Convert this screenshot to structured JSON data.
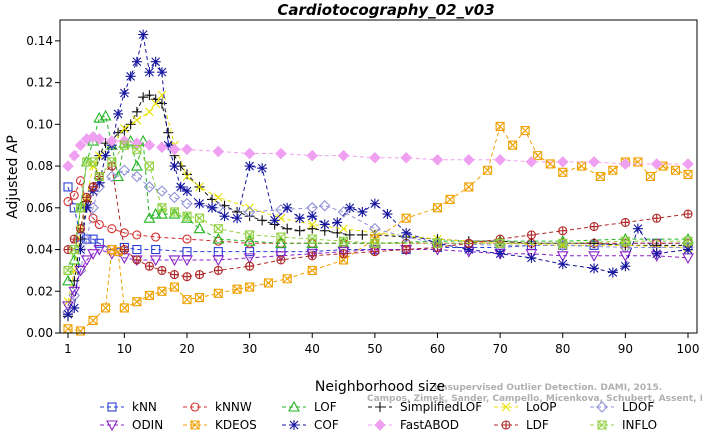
{
  "chart_data": {
    "type": "line",
    "title": "Cardiotocography_02_v03",
    "xlabel": "Neighborhood size",
    "ylabel": "Adjusted AP",
    "xlim": [
      1,
      100
    ],
    "ylim": [
      0,
      0.15
    ],
    "xticks": [
      1,
      10,
      20,
      30,
      40,
      50,
      60,
      70,
      80,
      90,
      100
    ],
    "xtick_labels": [
      "1",
      "10",
      "20",
      "30",
      "40",
      "50",
      "60",
      "70",
      "80",
      "90",
      "100"
    ],
    "yticks": [
      0,
      0.02,
      0.04,
      0.06,
      0.08,
      0.1,
      0.12,
      0.14
    ],
    "ytick_labels": [
      "0.00",
      "0.02",
      "0.04",
      "0.06",
      "0.08",
      "0.10",
      "0.12",
      "0.14"
    ],
    "grid": false,
    "legend_position": "bottom",
    "watermark": [
      "Campos, Zimek, Sander, Campello, Micenkova, Schubert, Assent, Houle",
      "Unsupervised Outlier Detection. DAMI, 2015."
    ],
    "series": [
      {
        "name": "kNN",
        "color": "#2a3fd6",
        "marker": "square",
        "x": [
          1,
          2,
          3,
          4,
          5,
          6,
          8,
          10,
          12,
          15,
          20,
          25,
          30,
          35,
          40,
          45,
          50,
          55,
          60,
          65,
          70,
          75,
          80,
          85,
          90,
          95,
          100
        ],
        "y": [
          0.07,
          0.06,
          0.046,
          0.045,
          0.045,
          0.043,
          0.04,
          0.041,
          0.04,
          0.04,
          0.039,
          0.039,
          0.039,
          0.039,
          0.039,
          0.04,
          0.04,
          0.04,
          0.041,
          0.041,
          0.041,
          0.042,
          0.042,
          0.042,
          0.043,
          0.043,
          0.043
        ]
      },
      {
        "name": "kNNW",
        "color": "#d23030",
        "marker": "circle",
        "x": [
          1,
          2,
          3,
          4,
          5,
          6,
          8,
          10,
          12,
          15,
          20,
          25,
          30,
          35,
          40,
          45,
          50,
          55,
          60,
          65,
          70,
          75,
          80,
          85,
          90,
          95,
          100
        ],
        "y": [
          0.063,
          0.066,
          0.073,
          0.062,
          0.055,
          0.052,
          0.05,
          0.048,
          0.047,
          0.046,
          0.045,
          0.044,
          0.043,
          0.043,
          0.043,
          0.043,
          0.043,
          0.043,
          0.043,
          0.043,
          0.043,
          0.043,
          0.043,
          0.043,
          0.043,
          0.043,
          0.043
        ]
      },
      {
        "name": "LOF",
        "color": "#22b522",
        "marker": "triangle-up",
        "x": [
          1,
          2,
          3,
          4,
          5,
          6,
          7,
          8,
          9,
          10,
          11,
          12,
          13,
          14,
          15,
          16,
          18,
          20,
          22,
          25,
          30,
          35,
          40,
          45,
          50,
          60,
          70,
          80,
          90,
          100
        ],
        "y": [
          0.025,
          0.035,
          0.06,
          0.082,
          0.092,
          0.103,
          0.104,
          0.09,
          0.075,
          0.091,
          0.092,
          0.08,
          0.092,
          0.055,
          0.057,
          0.057,
          0.057,
          0.055,
          0.05,
          0.045,
          0.044,
          0.043,
          0.043,
          0.043,
          0.043,
          0.044,
          0.044,
          0.044,
          0.045,
          0.045
        ]
      },
      {
        "name": "SimplifiedLOF",
        "color": "#111111",
        "marker": "plus",
        "x": [
          1,
          2,
          3,
          4,
          5,
          6,
          7,
          8,
          9,
          10,
          11,
          12,
          13,
          14,
          15,
          16,
          17,
          18,
          19,
          20,
          22,
          24,
          26,
          28,
          30,
          32,
          34,
          36,
          38,
          40,
          42,
          44,
          46,
          48,
          50,
          55,
          60,
          65,
          70,
          75,
          80,
          85,
          90,
          95,
          100
        ],
        "y": [
          0.008,
          0.025,
          0.045,
          0.063,
          0.07,
          0.085,
          0.091,
          0.092,
          0.096,
          0.097,
          0.1,
          0.106,
          0.113,
          0.114,
          0.112,
          0.11,
          0.096,
          0.085,
          0.08,
          0.076,
          0.07,
          0.064,
          0.061,
          0.058,
          0.056,
          0.054,
          0.052,
          0.05,
          0.049,
          0.05,
          0.049,
          0.048,
          0.047,
          0.047,
          0.047,
          0.046,
          0.045,
          0.044,
          0.044,
          0.043,
          0.043,
          0.043,
          0.042,
          0.042,
          0.042
        ]
      },
      {
        "name": "LoOP",
        "color": "#e8e000",
        "marker": "x",
        "x": [
          1,
          2,
          3,
          4,
          5,
          6,
          8,
          10,
          12,
          14,
          15,
          16,
          18,
          20,
          22,
          25,
          30,
          35,
          40,
          45,
          50,
          60,
          70,
          80,
          90,
          100
        ],
        "y": [
          0.015,
          0.03,
          0.05,
          0.065,
          0.08,
          0.085,
          0.09,
          0.098,
          0.102,
          0.106,
          0.11,
          0.114,
          0.09,
          0.075,
          0.07,
          0.065,
          0.06,
          0.055,
          0.052,
          0.05,
          0.048,
          0.045,
          0.043,
          0.042,
          0.042,
          0.041
        ]
      },
      {
        "name": "LDOF",
        "color": "#9090d8",
        "marker": "diamond",
        "x": [
          1,
          2,
          3,
          4,
          5,
          6,
          8,
          10,
          12,
          14,
          16,
          18,
          20,
          25,
          30,
          35,
          40,
          42,
          45,
          50,
          55,
          60,
          70,
          80,
          90,
          100
        ],
        "y": [
          0.01,
          0.018,
          0.03,
          0.045,
          0.06,
          0.07,
          0.075,
          0.078,
          0.075,
          0.07,
          0.068,
          0.065,
          0.062,
          0.06,
          0.058,
          0.059,
          0.06,
          0.061,
          0.058,
          0.05,
          0.046,
          0.043,
          0.042,
          0.042,
          0.041,
          0.041
        ]
      },
      {
        "name": "ODIN",
        "color": "#8a22c8",
        "marker": "triangle-down",
        "x": [
          1,
          2,
          3,
          4,
          5,
          6,
          8,
          10,
          12,
          15,
          18,
          20,
          25,
          30,
          35,
          40,
          45,
          50,
          55,
          60,
          65,
          70,
          75,
          80,
          85,
          90,
          95,
          100
        ],
        "y": [
          0.013,
          0.02,
          0.03,
          0.035,
          0.038,
          0.04,
          0.038,
          0.036,
          0.035,
          0.035,
          0.035,
          0.035,
          0.035,
          0.036,
          0.037,
          0.038,
          0.039,
          0.04,
          0.04,
          0.04,
          0.039,
          0.038,
          0.038,
          0.037,
          0.037,
          0.037,
          0.037,
          0.036
        ]
      },
      {
        "name": "KDEOS",
        "color": "#f0a000",
        "marker": "square-x",
        "x": [
          1,
          3,
          5,
          7,
          8,
          9,
          10,
          12,
          14,
          16,
          18,
          20,
          22,
          25,
          28,
          30,
          33,
          36,
          40,
          45,
          50,
          55,
          60,
          62,
          65,
          68,
          70,
          72,
          74,
          76,
          78,
          80,
          83,
          86,
          88,
          90,
          92,
          94,
          96,
          98,
          100
        ],
        "y": [
          0.002,
          0.001,
          0.006,
          0.012,
          0.04,
          0.039,
          0.012,
          0.015,
          0.018,
          0.02,
          0.022,
          0.016,
          0.017,
          0.019,
          0.021,
          0.022,
          0.024,
          0.026,
          0.03,
          0.035,
          0.045,
          0.055,
          0.06,
          0.064,
          0.07,
          0.078,
          0.099,
          0.09,
          0.097,
          0.085,
          0.081,
          0.077,
          0.08,
          0.075,
          0.078,
          0.082,
          0.082,
          0.075,
          0.08,
          0.078,
          0.076
        ]
      },
      {
        "name": "COF",
        "color": "#1515a0",
        "marker": "star",
        "x": [
          1,
          2,
          3,
          4,
          5,
          6,
          7,
          8,
          9,
          10,
          11,
          12,
          13,
          14,
          15,
          16,
          17,
          18,
          19,
          20,
          22,
          24,
          26,
          28,
          30,
          32,
          34,
          36,
          38,
          40,
          42,
          44,
          46,
          48,
          50,
          52,
          55,
          60,
          65,
          70,
          75,
          80,
          85,
          88,
          90,
          92,
          95,
          100
        ],
        "y": [
          0.009,
          0.012,
          0.04,
          0.06,
          0.068,
          0.072,
          0.085,
          0.09,
          0.105,
          0.115,
          0.123,
          0.13,
          0.143,
          0.125,
          0.13,
          0.125,
          0.09,
          0.08,
          0.07,
          0.068,
          0.062,
          0.06,
          0.056,
          0.055,
          0.08,
          0.079,
          0.054,
          0.06,
          0.055,
          0.056,
          0.052,
          0.053,
          0.06,
          0.058,
          0.062,
          0.057,
          0.048,
          0.043,
          0.04,
          0.038,
          0.036,
          0.033,
          0.031,
          0.029,
          0.032,
          0.05,
          0.038,
          0.04
        ]
      },
      {
        "name": "FastABOD",
        "color": "#f0a0f0",
        "marker": "diamond-filled",
        "x": [
          1,
          2,
          3,
          4,
          5,
          6,
          8,
          10,
          12,
          14,
          16,
          18,
          20,
          25,
          30,
          35,
          40,
          45,
          50,
          55,
          60,
          65,
          70,
          75,
          80,
          85,
          90,
          95,
          100
        ],
        "y": [
          0.08,
          0.085,
          0.09,
          0.093,
          0.094,
          0.093,
          0.092,
          0.092,
          0.091,
          0.09,
          0.089,
          0.088,
          0.088,
          0.087,
          0.086,
          0.086,
          0.085,
          0.085,
          0.084,
          0.084,
          0.083,
          0.083,
          0.083,
          0.082,
          0.082,
          0.082,
          0.081,
          0.081,
          0.081
        ]
      },
      {
        "name": "LDF",
        "color": "#b02828",
        "marker": "circle-plus",
        "x": [
          1,
          2,
          3,
          4,
          5,
          6,
          8,
          10,
          12,
          14,
          16,
          18,
          20,
          22,
          25,
          30,
          35,
          40,
          45,
          50,
          55,
          60,
          65,
          70,
          75,
          80,
          85,
          90,
          95,
          100
        ],
        "y": [
          0.04,
          0.045,
          0.05,
          0.065,
          0.07,
          0.075,
          0.08,
          0.04,
          0.035,
          0.032,
          0.03,
          0.028,
          0.027,
          0.028,
          0.03,
          0.032,
          0.035,
          0.037,
          0.038,
          0.039,
          0.04,
          0.041,
          0.043,
          0.045,
          0.047,
          0.049,
          0.051,
          0.053,
          0.055,
          0.057
        ]
      },
      {
        "name": "INFLO",
        "color": "#90d040",
        "marker": "square-x",
        "x": [
          1,
          2,
          3,
          4,
          5,
          6,
          8,
          10,
          12,
          14,
          16,
          18,
          20,
          22,
          25,
          30,
          35,
          40,
          45,
          50,
          60,
          70,
          80,
          90,
          100
        ],
        "y": [
          0.03,
          0.04,
          0.06,
          0.082,
          0.082,
          0.075,
          0.082,
          0.09,
          0.088,
          0.08,
          0.06,
          0.058,
          0.056,
          0.055,
          0.05,
          0.047,
          0.046,
          0.045,
          0.044,
          0.043,
          0.043,
          0.043,
          0.043,
          0.044,
          0.044
        ]
      }
    ]
  }
}
